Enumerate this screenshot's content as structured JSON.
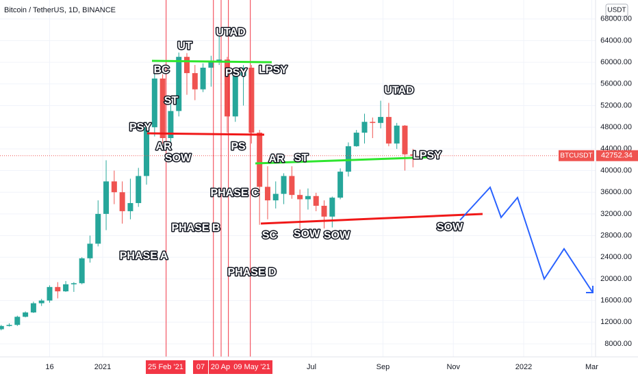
{
  "chart_data": {
    "type": "candlestick",
    "title": "Bitcoin / TetherUS, 1D, BINANCE",
    "currency": "USDT",
    "symbol": "BTCUSDT",
    "last_price": 42752.34,
    "up_color": "#26a69a",
    "down_color": "#ef5350",
    "x": [
      "2020-10-05",
      "2020-10-12",
      "2020-10-19",
      "2020-10-26",
      "2020-11-02",
      "2020-11-09",
      "2020-11-16",
      "2020-11-23",
      "2020-11-30",
      "2020-12-07",
      "2020-12-14",
      "2020-12-21",
      "2020-12-28",
      "2021-01-04",
      "2021-01-11",
      "2021-01-18",
      "2021-01-25",
      "2021-02-01",
      "2021-02-08",
      "2021-02-15",
      "2021-02-22",
      "2021-03-01",
      "2021-03-08",
      "2021-03-15",
      "2021-03-22",
      "2021-03-29",
      "2021-04-05",
      "2021-04-12",
      "2021-04-19",
      "2021-04-26",
      "2021-05-03",
      "2021-05-10",
      "2021-05-17",
      "2021-05-24",
      "2021-05-31",
      "2021-06-07",
      "2021-06-14",
      "2021-06-21",
      "2021-06-28",
      "2021-07-05",
      "2021-07-12",
      "2021-07-19",
      "2021-07-26",
      "2021-08-02",
      "2021-08-09",
      "2021-08-16",
      "2021-08-23",
      "2021-08-30",
      "2021-09-06",
      "2021-09-13",
      "2021-09-20",
      "2021-09-27"
    ],
    "open": [
      10700,
      11300,
      11500,
      13000,
      13800,
      15500,
      16000,
      18500,
      17700,
      19000,
      19200,
      23800,
      26500,
      32000,
      38000,
      36000,
      32500,
      34000,
      39000,
      48000,
      57000,
      46000,
      51000,
      61000,
      58000,
      55000,
      59000,
      60000,
      60500,
      50000,
      57500,
      59000,
      47000,
      37000,
      34500,
      35700,
      39000,
      35500,
      34700,
      35300,
      33500,
      31500,
      35000,
      39800,
      44500,
      47000,
      49000,
      48800,
      49900,
      45000,
      48300,
      43000
    ],
    "high": [
      11500,
      11800,
      13200,
      14000,
      15800,
      16300,
      18800,
      19400,
      19600,
      19400,
      24000,
      28000,
      34500,
      41900,
      40000,
      38000,
      38500,
      40500,
      49000,
      58300,
      57800,
      52500,
      61800,
      61700,
      59500,
      59800,
      61200,
      64800,
      61000,
      58000,
      59500,
      59500,
      47500,
      40800,
      38000,
      39500,
      40800,
      36500,
      36700,
      35900,
      34500,
      35200,
      40400,
      45200,
      47500,
      50500,
      49800,
      52900,
      52500,
      48800,
      48400,
      44000
    ],
    "low": [
      10500,
      11200,
      11300,
      12900,
      13700,
      15000,
      15600,
      16400,
      17600,
      17600,
      19000,
      23000,
      26000,
      29000,
      33800,
      30200,
      31000,
      33300,
      37400,
      46300,
      45000,
      44000,
      50000,
      54000,
      53000,
      54500,
      55500,
      59500,
      47000,
      49000,
      52000,
      45000,
      30000,
      31000,
      33000,
      33800,
      34800,
      28800,
      32800,
      32500,
      29300,
      29500,
      34700,
      38900,
      44400,
      45000,
      46000,
      47800,
      44500,
      44000,
      40000,
      40600
    ],
    "close": [
      11300,
      11500,
      13000,
      13800,
      15500,
      16000,
      18500,
      17700,
      19000,
      19200,
      23800,
      26500,
      32000,
      38000,
      36000,
      32500,
      34000,
      39000,
      48000,
      57000,
      46000,
      51000,
      61000,
      58000,
      55000,
      59000,
      60000,
      60500,
      50000,
      57500,
      59000,
      47000,
      37000,
      34500,
      35700,
      39000,
      35500,
      34700,
      35300,
      33500,
      31500,
      35000,
      39800,
      44500,
      47000,
      49000,
      48800,
      49900,
      45000,
      48300,
      43000,
      42752.34
    ],
    "ylim": [
      5600,
      71500
    ],
    "yticks": [
      {
        "value": 8000,
        "label": "8000.00"
      },
      {
        "value": 12000,
        "label": "12000.00"
      },
      {
        "value": 16000,
        "label": "16000.00"
      },
      {
        "value": 20000,
        "label": "20000.00"
      },
      {
        "value": 24000,
        "label": "24000.00"
      },
      {
        "value": 28000,
        "label": "28000.00"
      },
      {
        "value": 32000,
        "label": "32000.00"
      },
      {
        "value": 36000,
        "label": "36000.00"
      },
      {
        "value": 40000,
        "label": "40000.00"
      },
      {
        "value": 44000,
        "label": "44000.00"
      },
      {
        "value": 48000,
        "label": "48000.00"
      },
      {
        "value": 52000,
        "label": "52000.00"
      },
      {
        "value": 56000,
        "label": "56000.00"
      },
      {
        "value": 60000,
        "label": "60000.00"
      },
      {
        "value": 64000,
        "label": "64000.00"
      },
      {
        "value": 68000,
        "label": "68000.00"
      }
    ],
    "xticks": [
      {
        "value": "2020-11-16",
        "label": "16"
      },
      {
        "value": "2021-01-01",
        "label": "2021"
      },
      {
        "value": "2021-07-01",
        "label": "Jul"
      },
      {
        "value": "2021-09-01",
        "label": "Sep"
      },
      {
        "value": "2021-11-01",
        "label": "Nov"
      },
      {
        "value": "2022-01-01",
        "label": "2022"
      },
      {
        "value": "2022-03-01",
        "label": "Mar"
      }
    ],
    "markers": [
      {
        "value": "2021-02-25",
        "label": "25 Feb '21"
      },
      {
        "value": "2021-04-07",
        "label": "07"
      },
      {
        "value": "2021-04-20",
        "label": "20 Ap"
      },
      {
        "value": "2021-05-09",
        "label": "09 May '21"
      }
    ],
    "annotations": [
      "PSY",
      "AR",
      "SOW",
      "BC",
      "ST",
      "UT",
      "UTAD",
      "PSY",
      "LPSY",
      "PS",
      "AR",
      "ST",
      "PHASE C",
      "PHASE B",
      "PHASE A",
      "PHASE D",
      "SC",
      "SOW",
      "SOW",
      "UTAD",
      "LPSY",
      "SOW"
    ]
  }
}
